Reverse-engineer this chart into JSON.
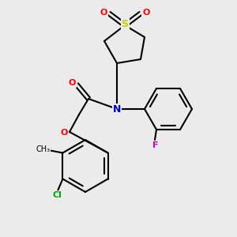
{
  "bg_color": "#ebebeb",
  "atom_colors": {
    "O": "#ff0000",
    "N": "#0000cc",
    "S": "#cccc00",
    "Cl": "#00aa00",
    "F": "#cc00cc",
    "C": "#000000"
  }
}
